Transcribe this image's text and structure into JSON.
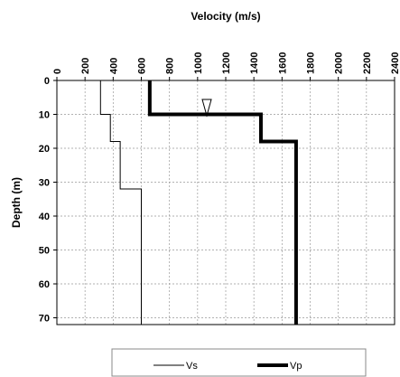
{
  "chart_data": {
    "type": "line",
    "title": "Velocity (m/s)",
    "y_label": "Depth (m)",
    "xlim": [
      0,
      2400
    ],
    "xticks": [
      0,
      200,
      400,
      600,
      800,
      1000,
      1200,
      1400,
      1600,
      1800,
      2000,
      2200,
      2400
    ],
    "ylim": [
      0,
      72
    ],
    "yticks": [
      0,
      10,
      20,
      30,
      40,
      50,
      60,
      70
    ],
    "y_inverted": true,
    "x_axis_position": "top",
    "grid": true,
    "legend": "bottom",
    "series": [
      {
        "name": "Vs",
        "color": "#000000",
        "width": 1,
        "x": [
          310,
          310,
          380,
          380,
          450,
          450,
          600,
          600
        ],
        "values": [
          0,
          10,
          10,
          18,
          18,
          32,
          32,
          72
        ]
      },
      {
        "name": "Vp",
        "color": "#000000",
        "width": 4,
        "x": [
          660,
          660,
          1450,
          1450,
          1700,
          1700
        ],
        "values": [
          0,
          10,
          10,
          18,
          18,
          72
        ]
      }
    ]
  }
}
